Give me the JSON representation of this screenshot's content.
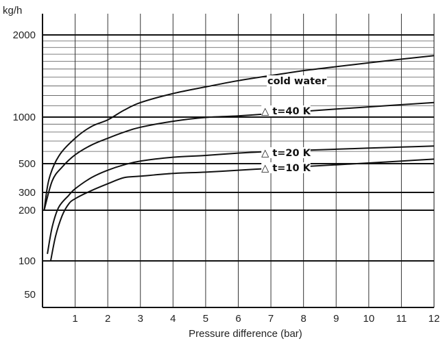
{
  "chart_data": {
    "type": "line",
    "title": "",
    "xlabel": "Pressure difference (bar)",
    "ylabel": "kg/h",
    "xlim": [
      0,
      12
    ],
    "x_ticks": [
      "1",
      "2",
      "3",
      "4",
      "5",
      "6",
      "7",
      "8",
      "9",
      "10",
      "11",
      "12"
    ],
    "y_ticks": [
      "50",
      "100",
      "200",
      "300",
      "500",
      "1000",
      "2000"
    ],
    "grid": true,
    "series": [
      {
        "name": "cold water",
        "x": [
          0.05,
          0.2,
          0.5,
          1.0,
          1.5,
          2.0,
          2.5,
          3.0,
          4.0,
          5.0,
          6.0,
          7.0,
          8.0,
          9.0,
          10.0,
          11.0,
          12.0
        ],
        "y": [
          200,
          380,
          560,
          730,
          870,
          960,
          1060,
          1130,
          1220,
          1290,
          1360,
          1420,
          1480,
          1530,
          1580,
          1630,
          1680
        ]
      },
      {
        "name": "△ t=40 K",
        "x": [
          0.05,
          0.3,
          0.6,
          1.0,
          1.5,
          2.0,
          2.5,
          3.0,
          4.0,
          5.0,
          6.0,
          7.0,
          8.0,
          9.0,
          10.0,
          11.0,
          12.0
        ],
        "y": [
          200,
          370,
          470,
          570,
          660,
          730,
          800,
          860,
          940,
          995,
          1010,
          1030,
          1050,
          1070,
          1090,
          1110,
          1130
        ]
      },
      {
        "name": "△ t=20 K",
        "x": [
          0.15,
          0.3,
          0.5,
          0.8,
          1.0,
          1.5,
          2.0,
          2.5,
          3.0,
          4.0,
          5.0,
          6.0,
          7.0,
          8.0,
          9.0,
          10.0,
          11.0,
          12.0
        ],
        "y": [
          110,
          160,
          215,
          280,
          320,
          390,
          445,
          490,
          520,
          550,
          565,
          585,
          600,
          610,
          620,
          630,
          640,
          650
        ]
      },
      {
        "name": "△ t=10 K",
        "x": [
          0.25,
          0.4,
          0.6,
          0.8,
          1.0,
          1.5,
          2.0,
          2.5,
          3.0,
          4.0,
          5.0,
          6.0,
          7.0,
          8.0,
          9.0,
          10.0,
          11.0,
          12.0
        ],
        "y": [
          100,
          140,
          185,
          230,
          260,
          310,
          350,
          390,
          400,
          420,
          430,
          445,
          460,
          475,
          490,
          505,
          520,
          535
        ]
      }
    ],
    "curve_labels": [
      "cold water",
      "△ t=40 K",
      "△ t=20 K",
      "△ t=10 K"
    ]
  }
}
